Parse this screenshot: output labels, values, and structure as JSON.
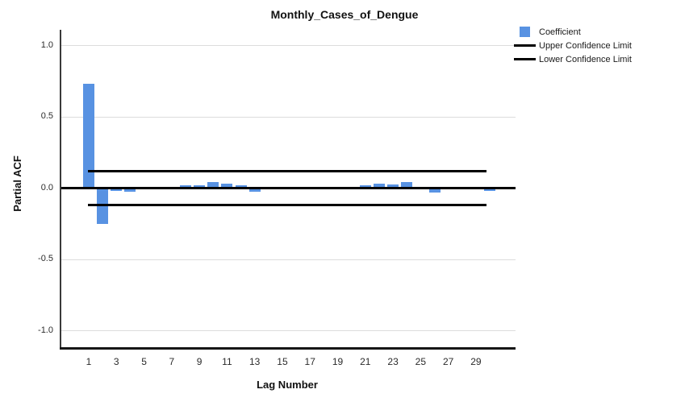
{
  "header": {
    "title": "Monthly_Cases_of_Dengue"
  },
  "legend": [
    {
      "label": "Coefficient",
      "swatch": "square",
      "color": "#5892E2"
    },
    {
      "label": "Upper Confidence Limit",
      "swatch": "line",
      "color": "#000000"
    },
    {
      "label": "Lower Confidence Limit",
      "swatch": "line",
      "color": "#000000"
    }
  ],
  "chart_data": {
    "type": "bar",
    "title": "Monthly_Cases_of_Dengue",
    "xlabel": "Lag Number",
    "ylabel": "Partial ACF",
    "x": [
      1,
      2,
      3,
      4,
      5,
      6,
      7,
      8,
      9,
      10,
      11,
      12,
      13,
      14,
      15,
      16,
      17,
      18,
      19,
      20,
      21,
      22,
      23,
      24,
      25,
      26,
      27,
      28,
      29,
      30
    ],
    "values": [
      0.73,
      -0.25,
      -0.02,
      -0.025,
      0.005,
      0.005,
      0.01,
      0.02,
      0.02,
      0.045,
      0.03,
      0.02,
      -0.025,
      0.005,
      0,
      0,
      -0.01,
      -0.01,
      0,
      0,
      0.02,
      0.03,
      0.025,
      0.04,
      0.005,
      -0.03,
      -0.01,
      0,
      0.005,
      -0.02
    ],
    "x_ticks": [
      1,
      3,
      5,
      7,
      9,
      11,
      13,
      15,
      17,
      19,
      21,
      23,
      25,
      27,
      29
    ],
    "y_ticks": [
      1.0,
      0.5,
      0.0,
      -0.5,
      -1.0
    ],
    "y_tick_labels": [
      "1.0",
      "0.5",
      "0.0",
      "-0.5",
      "-1.0"
    ],
    "ylim": [
      -1.1,
      1.1
    ],
    "upper_confidence_limit": 0.12,
    "lower_confidence_limit": -0.12,
    "bar_color": "#5892E2",
    "gridline_color": "#dcdcdc",
    "grid": "horizontal",
    "legend_position": "top-right"
  }
}
